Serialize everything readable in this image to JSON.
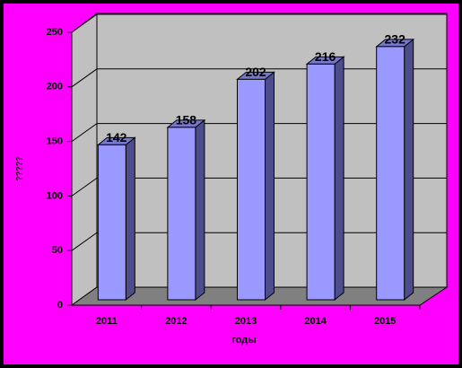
{
  "chart_data": {
    "type": "bar",
    "categories": [
      "2011",
      "2012",
      "2013",
      "2014",
      "2015"
    ],
    "values": [
      142,
      158,
      202,
      216,
      232
    ],
    "color": "#9999ff",
    "ylim": [
      0,
      250
    ],
    "yticks": [
      0,
      50,
      100,
      150,
      200,
      250
    ],
    "grid": true,
    "x_label": "годы",
    "y_label": "?????"
  }
}
